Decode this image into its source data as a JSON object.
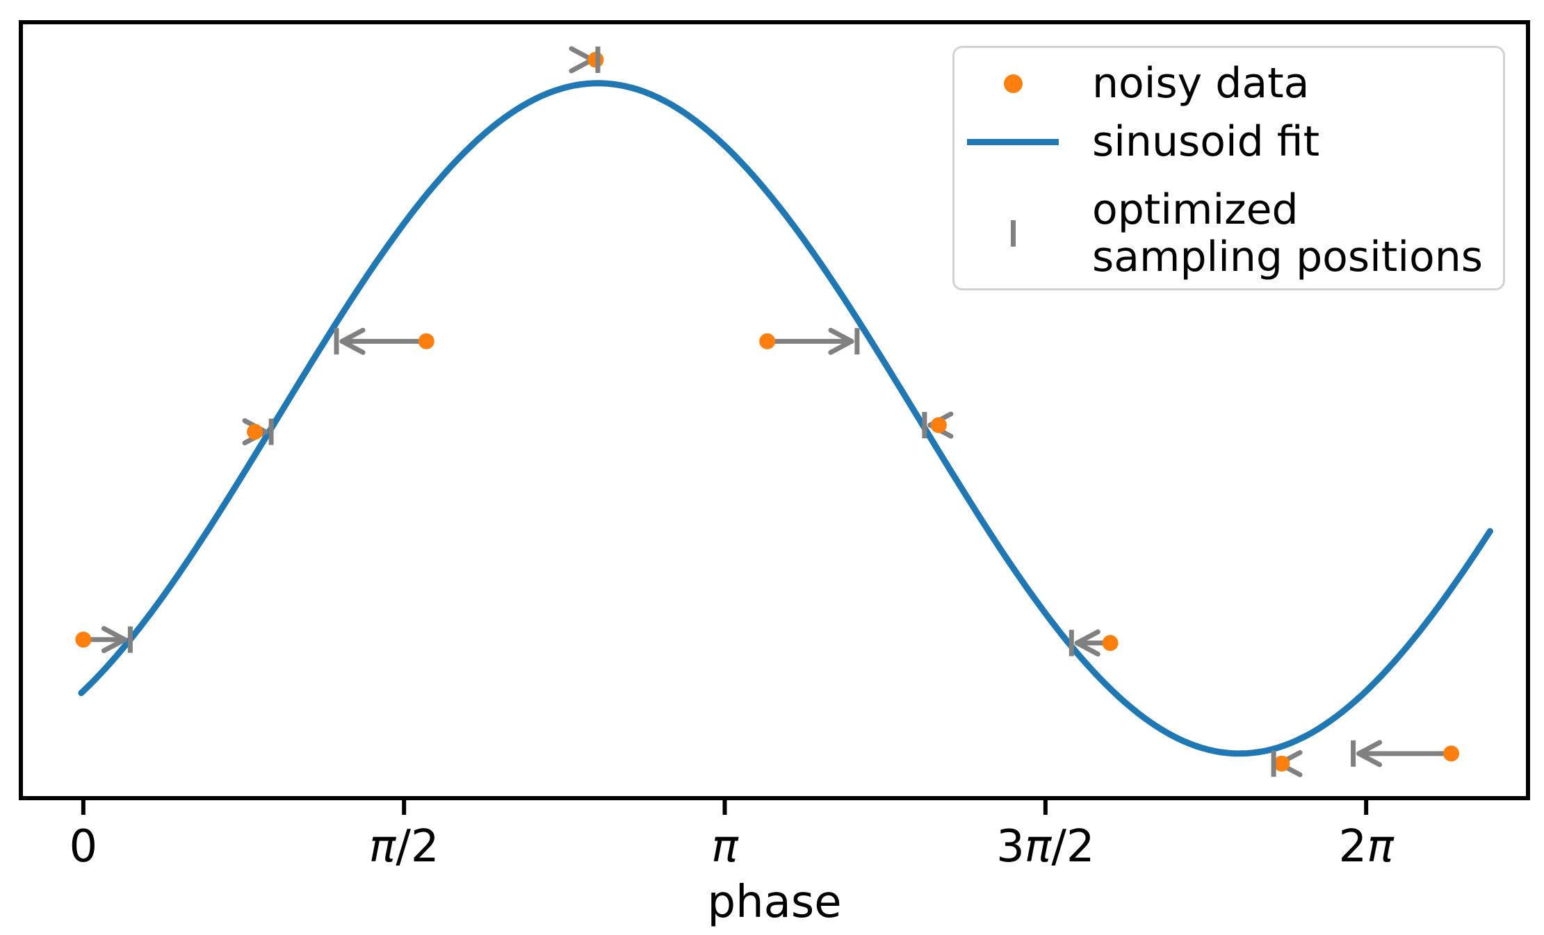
{
  "figure": {
    "background": "#ffffff",
    "spine_color": "#000000"
  },
  "axes": {
    "xlabel": "phase",
    "x_tick_labels": [
      "0",
      "π/2",
      "π",
      "3π/2",
      "2π"
    ],
    "x_tick_values": [
      0,
      1.5708,
      3.1416,
      4.7124,
      6.2832
    ],
    "xlim": [
      -0.306,
      7.076
    ],
    "ylim": [
      -1.133,
      1.182
    ],
    "y_ticks_visible": false,
    "grid": false
  },
  "colors": {
    "noisy_data": "#ff7f0e",
    "sinusoid_fit": "#1f77b4",
    "sampling": "#808080",
    "text": "#000000",
    "legend_border": "#d2d2d2"
  },
  "legend": {
    "position": "upper right",
    "entries": [
      {
        "marker": "dot",
        "color": "#ff7f0e",
        "label": "noisy data"
      },
      {
        "marker": "line",
        "color": "#1f77b4",
        "label": "sinusoid fit"
      },
      {
        "marker": "tick",
        "color": "#808080",
        "label": "optimized sampling positions",
        "label_lines": [
          "optimized",
          "sampling positions"
        ]
      }
    ]
  },
  "chart_data": {
    "type": "line+scatter",
    "xlabel": "phase",
    "x_ticks": [
      "0",
      "π/2",
      "π",
      "3π/2",
      "2π"
    ],
    "grid": false,
    "legend_position": "upper right",
    "series": [
      {
        "name": "noisy data",
        "type": "scatter",
        "color": "#ff7f0e",
        "x": [
          0.0,
          0.84,
          1.68,
          2.51,
          3.35,
          4.19,
          5.03,
          5.87,
          6.7
        ],
        "y": [
          -0.66,
          -0.04,
          0.23,
          1.07,
          0.23,
          -0.02,
          -0.67,
          -1.03,
          -1.0
        ]
      },
      {
        "name": "sinusoid fit",
        "type": "line",
        "color": "#1f77b4",
        "formula": "y = sin(x - 0.95)",
        "amplitude": 1.0,
        "phase_shift": 0.95,
        "offset": 0.0,
        "x_start": -0.01,
        "x_end": 6.89
      },
      {
        "name": "optimized sampling positions",
        "type": "event-ticks",
        "color": "#808080",
        "x": [
          0.23,
          0.92,
          1.24,
          2.52,
          3.79,
          4.12,
          4.84,
          5.83,
          6.22
        ],
        "note": "each tick drawn at the y of its paired noisy data point, joined by a horizontal arrow from the data point"
      }
    ]
  }
}
